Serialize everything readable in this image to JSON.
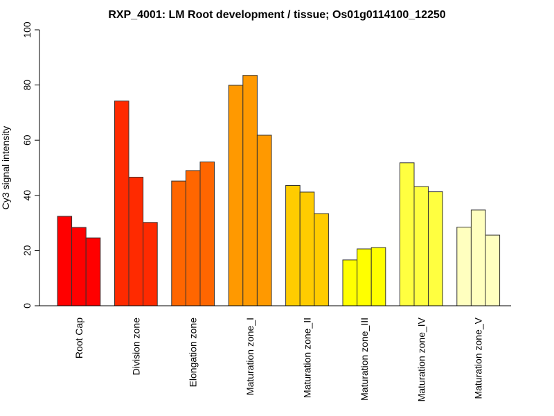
{
  "chart_data": {
    "type": "bar",
    "title": "RXP_4001: LM Root development / tissue; Os01g0114100_12250",
    "xlabel": "",
    "ylabel": "Cy3 signal intensity",
    "ylim": [
      0,
      100
    ],
    "yticks": [
      "0",
      "20",
      "40",
      "60",
      "80",
      "100"
    ],
    "grid": false,
    "legend": "none",
    "categories": [
      "Root Cap",
      "Division zone",
      "Elongation zone",
      "Maturation zone_I",
      "Maturation zone_II",
      "Maturation zone_III",
      "Maturation zone_IV",
      "Maturation zone_V"
    ],
    "colors": [
      "#FF0000",
      "#FF2A00",
      "#FF6600",
      "#FF9900",
      "#FFCC00",
      "#FFFF00",
      "#FFFF40",
      "#FFFFBF"
    ],
    "groups": [
      {
        "category": "Root Cap",
        "values": [
          32.4,
          28.4,
          24.6
        ]
      },
      {
        "category": "Division zone",
        "values": [
          74.2,
          46.6,
          30.2
        ]
      },
      {
        "category": "Elongation zone",
        "values": [
          45.2,
          49.0,
          52.1
        ]
      },
      {
        "category": "Maturation zone_I",
        "values": [
          79.9,
          83.5,
          61.8
        ]
      },
      {
        "category": "Maturation zone_II",
        "values": [
          43.6,
          41.2,
          33.4
        ]
      },
      {
        "category": "Maturation zone_III",
        "values": [
          16.6,
          20.6,
          21.1
        ]
      },
      {
        "category": "Maturation zone_IV",
        "values": [
          51.8,
          43.2,
          41.3
        ]
      },
      {
        "category": "Maturation zone_V",
        "values": [
          28.5,
          34.7,
          25.6
        ]
      }
    ]
  }
}
